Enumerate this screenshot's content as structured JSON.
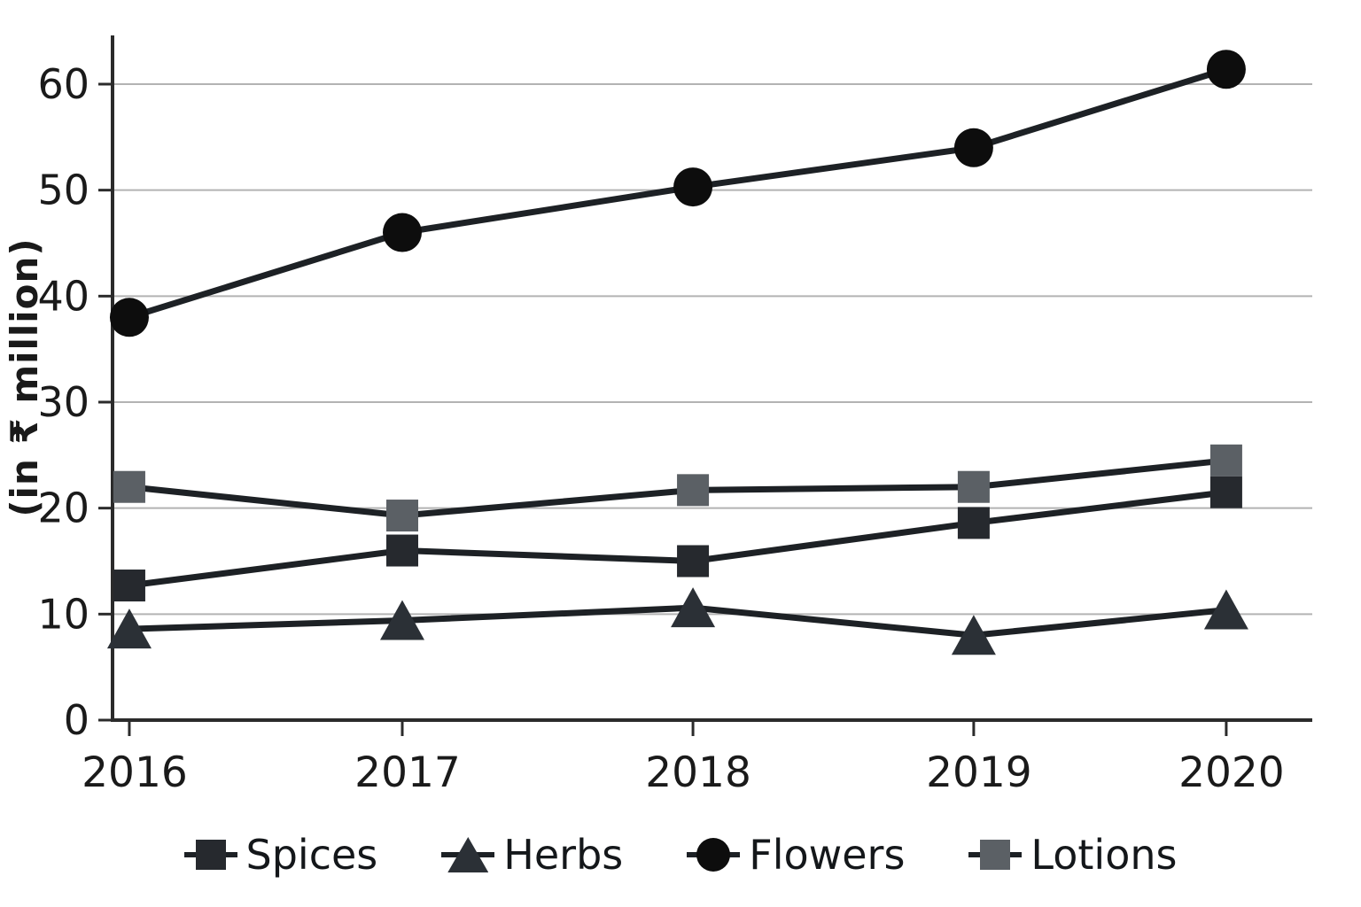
{
  "chart_data": {
    "type": "line",
    "title": "",
    "xlabel": "",
    "ylabel": "(in ₹ million)",
    "categories": [
      "2016",
      "2017",
      "2018",
      "2019",
      "2020"
    ],
    "series": [
      {
        "name": "Spices",
        "marker": "square",
        "marker_color": "#26292e",
        "values": [
          12.7,
          16.0,
          15.0,
          18.6,
          21.5
        ]
      },
      {
        "name": "Herbs",
        "marker": "triangle",
        "marker_color": "#2b3036",
        "values": [
          8.6,
          9.4,
          10.6,
          8.0,
          10.4
        ]
      },
      {
        "name": "Flowers",
        "marker": "circle",
        "marker_color": "#0d0d0d",
        "values": [
          38.0,
          46.0,
          50.3,
          54.0,
          61.4
        ]
      },
      {
        "name": "Lotions",
        "marker": "square",
        "marker_color": "#5b6065",
        "values": [
          22.0,
          19.3,
          21.7,
          22.0,
          24.5
        ]
      }
    ],
    "line_color": "#1d2125",
    "y_ticks": [
      0,
      10,
      20,
      30,
      40,
      50,
      60
    ],
    "ylim": [
      0,
      65
    ],
    "grid": "horizontal",
    "gridline_color": "#b3b3b3",
    "axis_color": "#2b2b2b",
    "text_color": "#1a1a1a",
    "legend_position": "bottom",
    "legend_labels": [
      "Spices",
      "Herbs",
      "Flowers",
      "Lotions"
    ]
  }
}
